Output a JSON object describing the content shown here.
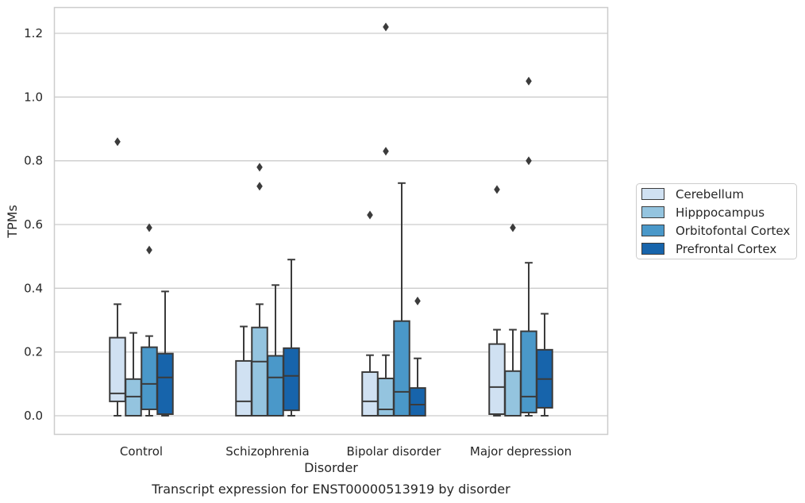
{
  "chart_data": {
    "type": "box",
    "xlabel": "Disorder",
    "ylabel": "TPMs",
    "caption": "Transcript expression for ENST00000513919 by disorder",
    "categories": [
      "Control",
      "Schizophrenia",
      "Bipolar disorder",
      "Major depression"
    ],
    "ylim": [
      -0.06,
      1.28
    ],
    "yticks": [
      0.0,
      0.2,
      0.4,
      0.6,
      0.8,
      1.0,
      1.2
    ],
    "ytick_labels": [
      "0.0",
      "0.2",
      "0.4",
      "0.6",
      "0.8",
      "1.0",
      "1.2"
    ],
    "grid": "horizontal",
    "legend_position": "right",
    "series": [
      {
        "name": "Cerebellum",
        "color": "#d0e1f2",
        "boxes": [
          {
            "whisker_low": 0.0,
            "q1": 0.045,
            "median": 0.07,
            "q3": 0.245,
            "whisker_high": 0.35,
            "outliers": [
              0.86
            ]
          },
          {
            "whisker_low": 0.0,
            "q1": 0.0,
            "median": 0.045,
            "q3": 0.172,
            "whisker_high": 0.28,
            "outliers": []
          },
          {
            "whisker_low": 0.0,
            "q1": 0.0,
            "median": 0.045,
            "q3": 0.137,
            "whisker_high": 0.19,
            "outliers": [
              0.63
            ]
          },
          {
            "whisker_low": 0.0,
            "q1": 0.005,
            "median": 0.09,
            "q3": 0.225,
            "whisker_high": 0.27,
            "outliers": [
              0.71
            ]
          }
        ]
      },
      {
        "name": "Hipppocampus",
        "color": "#94c4df",
        "boxes": [
          {
            "whisker_low": 0.0,
            "q1": 0.0,
            "median": 0.06,
            "q3": 0.115,
            "whisker_high": 0.26,
            "outliers": []
          },
          {
            "whisker_low": 0.0,
            "q1": 0.0,
            "median": 0.17,
            "q3": 0.277,
            "whisker_high": 0.35,
            "outliers": [
              0.72,
              0.78
            ]
          },
          {
            "whisker_low": 0.0,
            "q1": 0.0,
            "median": 0.02,
            "q3": 0.117,
            "whisker_high": 0.19,
            "outliers": [
              0.83,
              1.22
            ]
          },
          {
            "whisker_low": 0.0,
            "q1": 0.0,
            "median": 0.0,
            "q3": 0.14,
            "whisker_high": 0.27,
            "outliers": [
              0.59
            ]
          }
        ]
      },
      {
        "name": "Orbitofontal Cortex",
        "color": "#4a98c9",
        "boxes": [
          {
            "whisker_low": 0.0,
            "q1": 0.02,
            "median": 0.1,
            "q3": 0.215,
            "whisker_high": 0.25,
            "outliers": [
              0.52,
              0.59
            ]
          },
          {
            "whisker_low": 0.0,
            "q1": 0.0,
            "median": 0.12,
            "q3": 0.188,
            "whisker_high": 0.41,
            "outliers": []
          },
          {
            "whisker_low": 0.0,
            "q1": 0.0,
            "median": 0.075,
            "q3": 0.297,
            "whisker_high": 0.73,
            "outliers": []
          },
          {
            "whisker_low": 0.0,
            "q1": 0.01,
            "median": 0.06,
            "q3": 0.265,
            "whisker_high": 0.48,
            "outliers": [
              0.8,
              1.05
            ]
          }
        ]
      },
      {
        "name": "Prefrontal Cortex",
        "color": "#1764ab",
        "boxes": [
          {
            "whisker_low": 0.0,
            "q1": 0.005,
            "median": 0.12,
            "q3": 0.195,
            "whisker_high": 0.39,
            "outliers": []
          },
          {
            "whisker_low": 0.0,
            "q1": 0.017,
            "median": 0.125,
            "q3": 0.212,
            "whisker_high": 0.49,
            "outliers": []
          },
          {
            "whisker_low": 0.0,
            "q1": 0.0,
            "median": 0.035,
            "q3": 0.087,
            "whisker_high": 0.18,
            "outliers": [
              0.36
            ]
          },
          {
            "whisker_low": 0.0,
            "q1": 0.025,
            "median": 0.115,
            "q3": 0.207,
            "whisker_high": 0.32,
            "outliers": []
          }
        ]
      }
    ]
  }
}
